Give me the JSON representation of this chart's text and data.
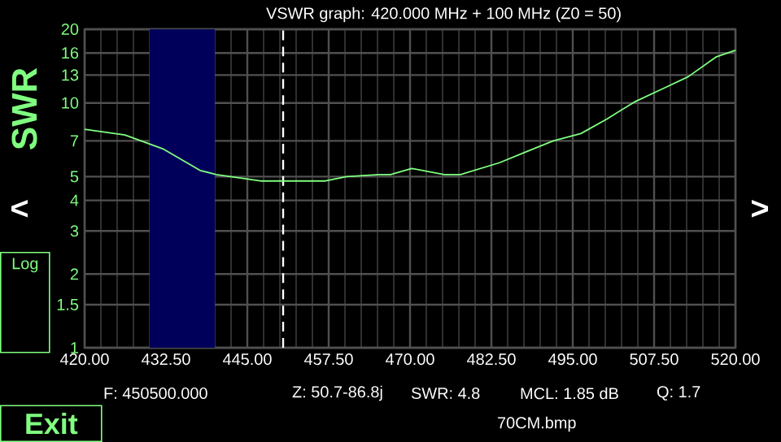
{
  "chart_data": {
    "type": "line",
    "title": "VSWR graph: 420.000 MHz + 100 MHz   (Z0 = 50)",
    "ylabel": "SWR",
    "x": [
      420,
      426.2,
      432,
      437.75,
      440.25,
      447,
      452,
      457,
      460.25,
      465.25,
      467,
      470.25,
      475.25,
      477.75,
      483.75,
      487.75,
      492,
      496.25,
      500.25,
      504.5,
      508.75,
      512.75,
      517,
      520
    ],
    "series": [
      {
        "color": "#80ff80",
        "values": [
          7.8,
          7.4,
          6.5,
          5.3,
          5.1,
          4.8,
          4.8,
          4.8,
          5.0,
          5.1,
          5.1,
          5.4,
          5.1,
          5.1,
          5.7,
          6.3,
          7.0,
          7.5,
          8.6,
          10.1,
          11.4,
          12.8,
          15.4,
          16.4
        ]
      }
    ],
    "log": true,
    "xlim": [
      420,
      520
    ],
    "ylim": [
      1,
      20
    ],
    "xticks": [
      {
        "value": 420,
        "label": "420.00"
      },
      {
        "value": 432.5,
        "label": "432.50"
      },
      {
        "value": 445,
        "label": "445.00"
      },
      {
        "value": 457.5,
        "label": "457.50"
      },
      {
        "value": 470,
        "label": "470.00"
      },
      {
        "value": 482.5,
        "label": "482.50"
      },
      {
        "value": 495,
        "label": "495.00"
      },
      {
        "value": 507.5,
        "label": "507.50"
      },
      {
        "value": 520,
        "label": "520.00"
      }
    ],
    "yticks": [
      1,
      1.5,
      2,
      3,
      4,
      5,
      7,
      10,
      13,
      16,
      20
    ],
    "grid": true,
    "ref_lines": [
      {
        "axis": "x",
        "value": 450.5,
        "color": "#ffffff",
        "line_style": "dashed"
      }
    ],
    "bands": [
      {
        "axis": "x",
        "from": 430,
        "to": 440,
        "color": "#00005a"
      }
    ],
    "annotations": [
      "<",
      ">",
      "Log",
      "Exit",
      "F: 450500.000",
      "Z: 50.7-86.8j",
      "SWR: 4.8",
      "MCL: 1.85 dB",
      "Q: 1.7",
      "70CM.bmp"
    ]
  }
}
